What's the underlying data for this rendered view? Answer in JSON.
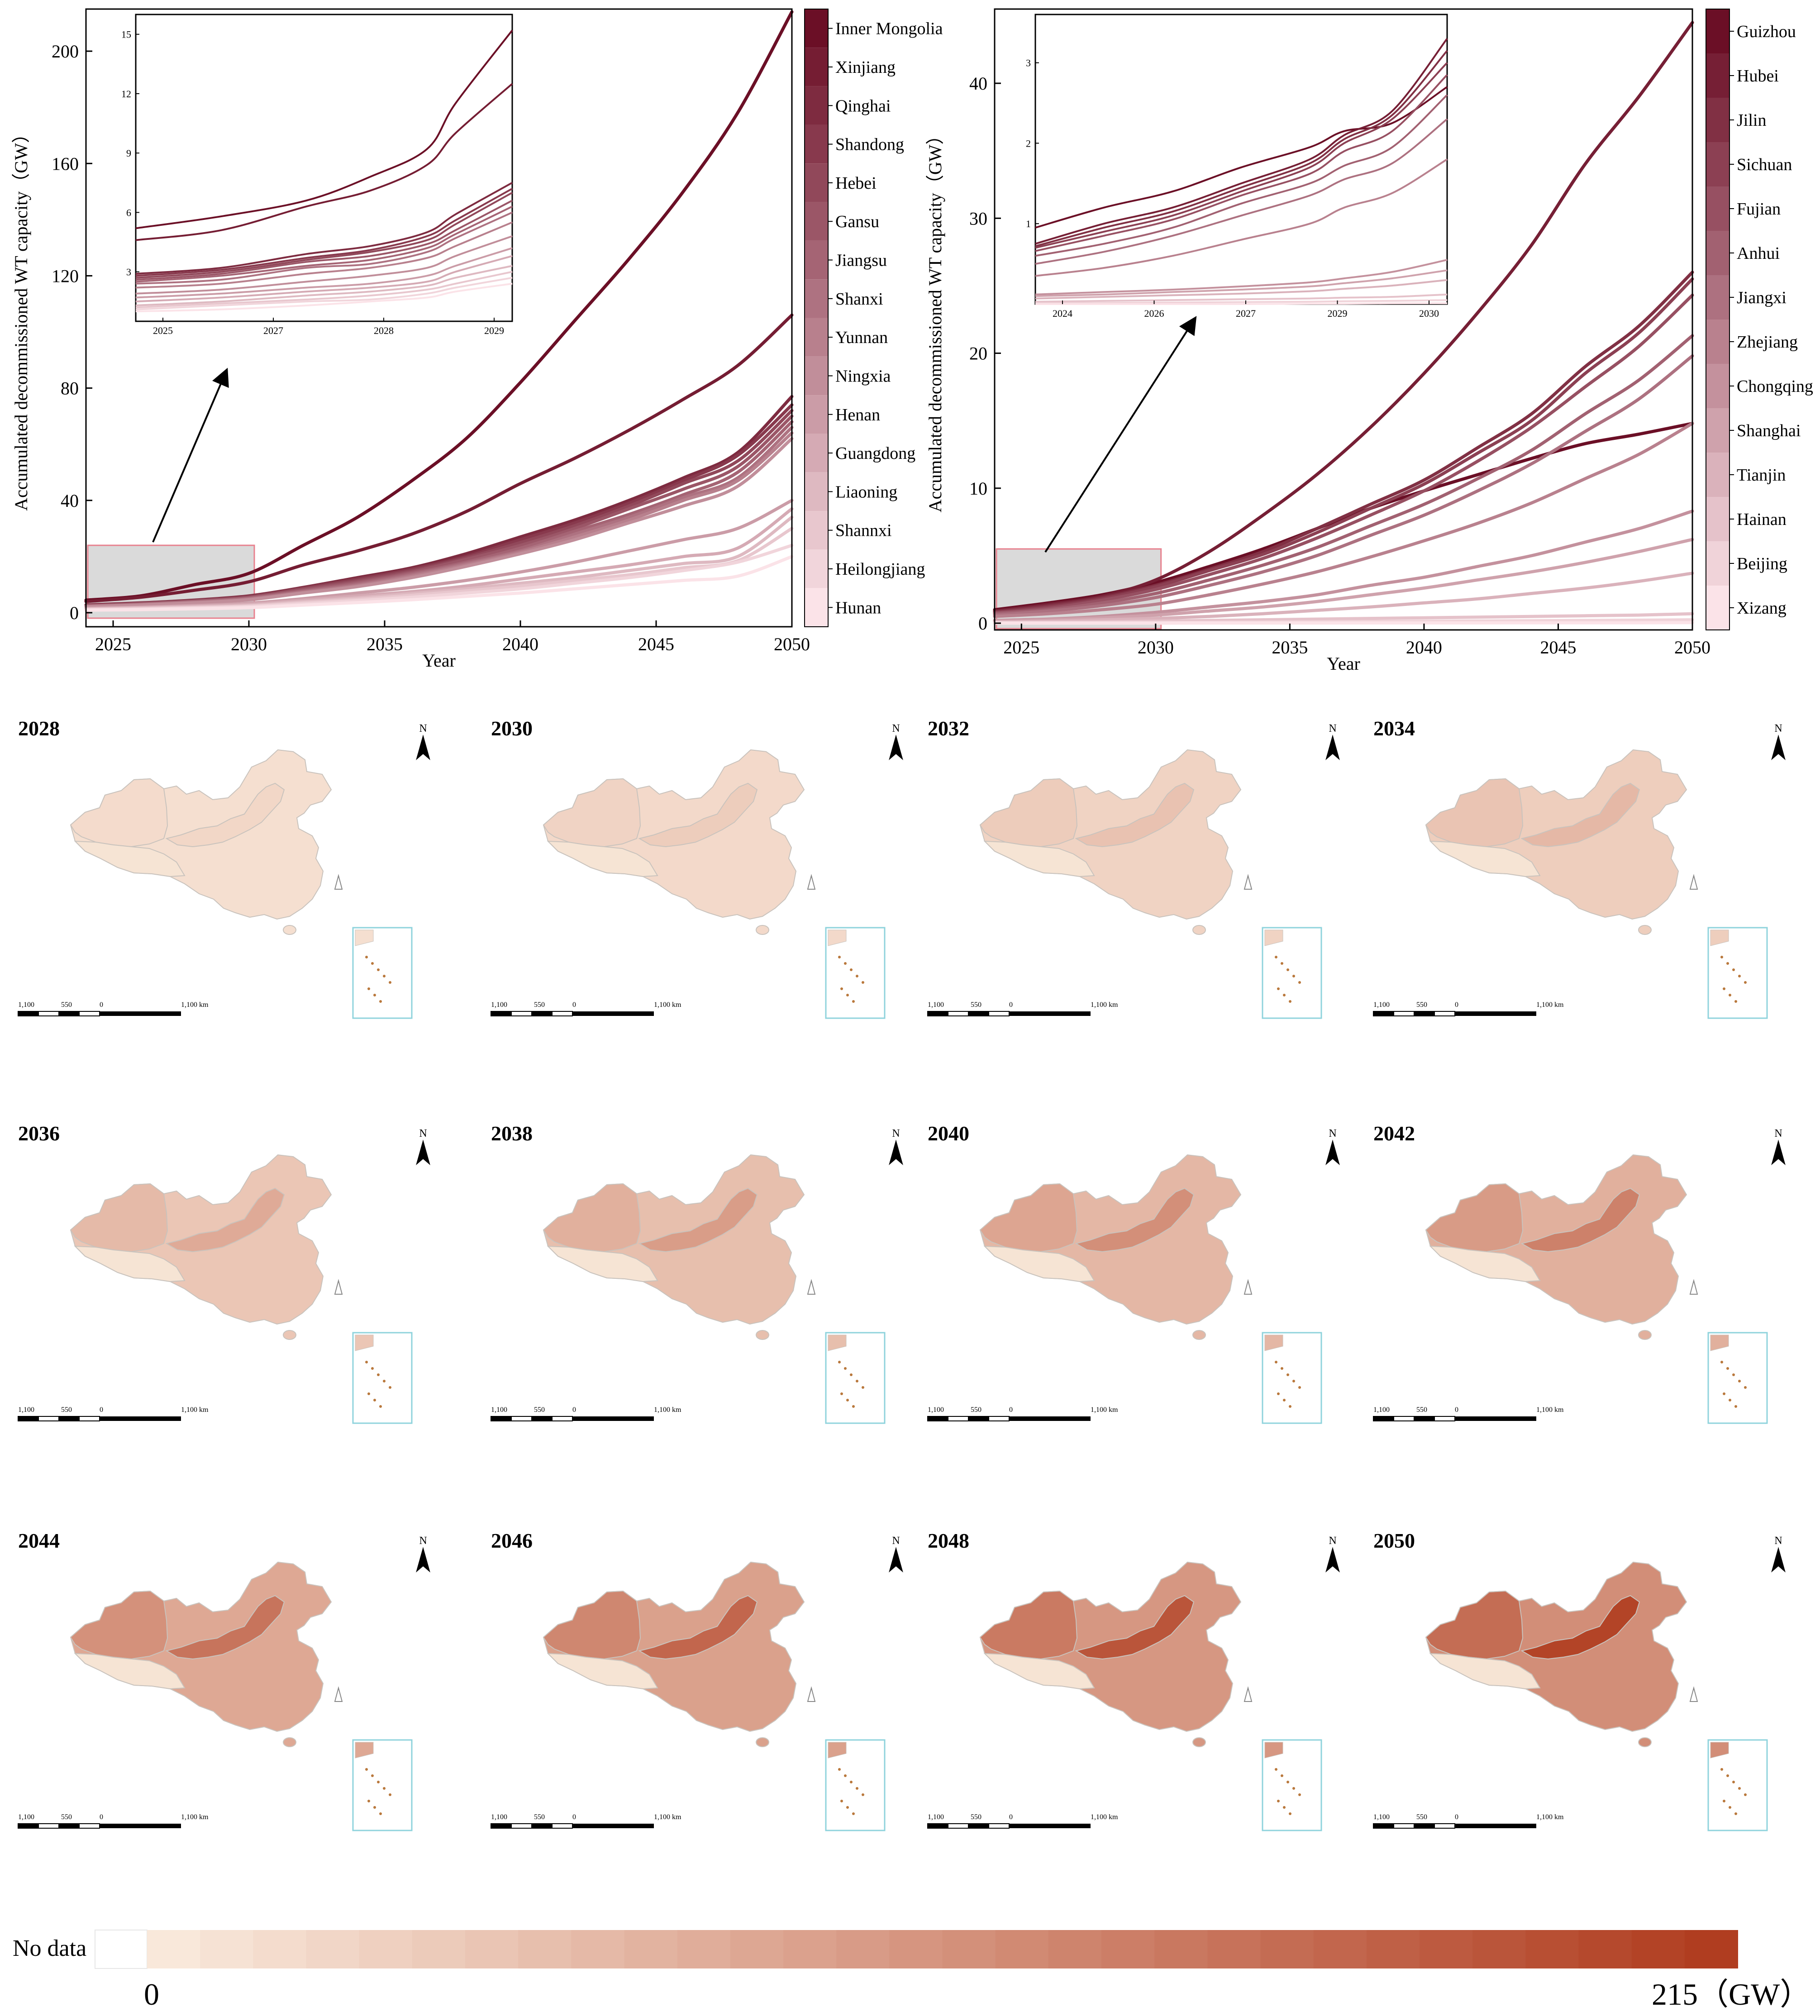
{
  "chart_data": [
    {
      "type": "line",
      "ylabel": "Accumulated decommissioned WT capacity（GW）",
      "xlabel": "Year",
      "xlim": [
        2024,
        2050
      ],
      "ylim": [
        -5,
        215
      ],
      "xticks": [
        2025,
        2030,
        2035,
        2040,
        2045,
        2050
      ],
      "yticks": [
        0,
        40,
        80,
        120,
        160,
        200
      ],
      "x": [
        2024,
        2026,
        2028,
        2030,
        2032,
        2034,
        2036,
        2038,
        2040,
        2042,
        2044,
        2046,
        2048,
        2050
      ],
      "legend_labels": [
        "Inner Mongolia",
        "Xinjiang",
        "Qinghai",
        "Shandong",
        "Hebei",
        "Gansu",
        "Jiangsu",
        "Shanxi",
        "Yunnan",
        "Ningxia",
        "Henan",
        "Guangdong",
        "Liaoning",
        "Shannxi",
        "Heilongjiang",
        "Hunan"
      ],
      "series": [
        {
          "name": "Inner Mongolia",
          "values": [
            4.5,
            6,
            10,
            14,
            24,
            34,
            47,
            62,
            82,
            104,
            126,
            150,
            178,
            214
          ]
        },
        {
          "name": "Xinjiang",
          "values": [
            4,
            5.5,
            8,
            11,
            17,
            22,
            28,
            36,
            46,
            55,
            65,
            76,
            88,
            106
          ]
        },
        {
          "name": "Qinghai",
          "values": [
            2.8,
            3.5,
            4.5,
            6,
            9,
            12.5,
            16,
            21,
            27,
            33,
            40,
            48,
            57,
            77
          ]
        },
        {
          "name": "Shandong",
          "values": [
            2.7,
            3.4,
            4.4,
            5.8,
            8.8,
            12,
            15.5,
            20,
            26,
            32,
            39,
            47,
            56,
            74
          ]
        },
        {
          "name": "Hebei",
          "values": [
            2.6,
            3.3,
            4.2,
            5.6,
            8.5,
            11.5,
            15,
            19.5,
            25,
            31,
            38,
            46,
            54,
            72
          ]
        },
        {
          "name": "Gansu",
          "values": [
            2.5,
            3.2,
            4.1,
            5.4,
            8.2,
            11,
            14.5,
            19,
            24,
            30,
            37,
            44,
            52,
            70
          ]
        },
        {
          "name": "Jiangsu",
          "values": [
            2.4,
            3,
            4,
            5.2,
            7.8,
            10.5,
            14,
            18,
            23,
            29,
            35,
            42,
            50,
            68
          ]
        },
        {
          "name": "Shanxi",
          "values": [
            2.3,
            2.9,
            3.8,
            5,
            7.5,
            10,
            13.5,
            17.5,
            22,
            28,
            34,
            41,
            48,
            66
          ]
        },
        {
          "name": "Yunnan",
          "values": [
            2.2,
            2.8,
            3.6,
            4.8,
            7.2,
            9.6,
            13,
            17,
            21.5,
            27,
            33,
            40,
            47,
            64
          ]
        },
        {
          "name": "Ningxia",
          "values": [
            2.1,
            2.7,
            3.5,
            4.6,
            7,
            9.3,
            12.5,
            16.5,
            21,
            26,
            32,
            38,
            45,
            62
          ]
        },
        {
          "name": "Henan",
          "values": [
            1.6,
            2,
            2.6,
            3.4,
            5,
            7,
            9,
            11.5,
            14.5,
            18,
            22,
            26,
            30,
            40
          ]
        },
        {
          "name": "Guangdong",
          "values": [
            1.5,
            1.9,
            2.4,
            3.1,
            4.5,
            6,
            7.5,
            9.5,
            12,
            14.5,
            17,
            20,
            23,
            37
          ]
        },
        {
          "name": "Liaoning",
          "values": [
            1.3,
            1.7,
            2.1,
            2.7,
            4,
            5.3,
            6.8,
            8.5,
            10.5,
            12.5,
            15,
            17.5,
            20,
            34
          ]
        },
        {
          "name": "Shannxi",
          "values": [
            1.2,
            1.5,
            1.9,
            2.4,
            3.6,
            4.8,
            6.2,
            7.8,
            9.5,
            11.5,
            13.5,
            16,
            18.5,
            30
          ]
        },
        {
          "name": "Heilongjiang",
          "values": [
            1,
            1.3,
            1.7,
            2.2,
            3.2,
            4.3,
            5.5,
            7,
            8.5,
            10.5,
            12.5,
            15,
            18,
            24
          ]
        },
        {
          "name": "Hunan",
          "values": [
            0.9,
            1.1,
            1.4,
            1.8,
            2.7,
            3.6,
            4.6,
            5.8,
            7,
            8.5,
            10,
            11.5,
            13,
            20
          ]
        }
      ],
      "inset": {
        "xticks": [
          "2025",
          "2027",
          "2028",
          "2029"
        ],
        "yticks": [
          3,
          6,
          9,
          12,
          15
        ],
        "ylim": [
          0.5,
          16
        ],
        "x": [
          2024.3,
          2025.5,
          2026.7,
          2027.6,
          2028.4,
          2028.8,
          2029.6
        ],
        "values": [
          [
            5.2,
            5.8,
            6.6,
            7.8,
            9.2,
            11.5,
            15.2
          ],
          [
            4.6,
            5.1,
            6.3,
            7.1,
            8.4,
            10,
            12.5
          ],
          [
            2.9,
            3.2,
            3.9,
            4.3,
            5,
            5.9,
            7.5
          ],
          [
            2.8,
            3.1,
            3.7,
            4.1,
            4.8,
            5.6,
            7.2
          ],
          [
            2.7,
            3,
            3.6,
            4,
            4.6,
            5.4,
            7
          ],
          [
            2.6,
            2.9,
            3.5,
            3.8,
            4.4,
            5.1,
            6.6
          ],
          [
            2.5,
            2.8,
            3.3,
            3.6,
            4.2,
            4.9,
            6.3
          ],
          [
            2.4,
            2.6,
            3.2,
            3.4,
            4,
            4.7,
            6
          ],
          [
            2.2,
            2.4,
            2.9,
            3.2,
            3.7,
            4.3,
            5.5
          ],
          [
            1.9,
            2.1,
            2.5,
            2.8,
            3.2,
            3.8,
            4.8
          ],
          [
            1.7,
            1.9,
            2.2,
            2.4,
            2.8,
            3.3,
            4.2
          ],
          [
            1.5,
            1.7,
            2,
            2.2,
            2.5,
            3,
            3.8
          ],
          [
            1.3,
            1.5,
            1.8,
            2,
            2.3,
            2.7,
            3.3
          ],
          [
            1.2,
            1.4,
            1.6,
            1.8,
            2.1,
            2.4,
            3
          ],
          [
            1.1,
            1.3,
            1.5,
            1.6,
            1.9,
            2.2,
            2.7
          ],
          [
            1,
            1.1,
            1.3,
            1.5,
            1.7,
            2,
            2.4
          ]
        ]
      }
    },
    {
      "type": "line",
      "ylabel": "Accumulated decommissioned WT capacity（GW）",
      "xlabel": "Year",
      "xlim": [
        2024,
        2050
      ],
      "ylim": [
        -0.5,
        45.5
      ],
      "xticks": [
        2025,
        2030,
        2035,
        2040,
        2045,
        2050
      ],
      "yticks": [
        0,
        10,
        20,
        30,
        40
      ],
      "x": [
        2024,
        2026,
        2028,
        2030,
        2032,
        2034,
        2036,
        2038,
        2040,
        2042,
        2044,
        2046,
        2048,
        2050
      ],
      "legend_labels": [
        "Guizhou",
        "Hubei",
        "Jilin",
        "Sichuan",
        "Fujian",
        "Anhui",
        "Jiangxi",
        "Zhejiang",
        "Chongqing",
        "Shanghai",
        "Tianjin",
        "Hainan",
        "Beijing",
        "Xizang"
      ],
      "series": [
        {
          "name": "Guizhou",
          "values": [
            1,
            1.5,
            2.1,
            3,
            4.2,
            5.5,
            7,
            8.5,
            9.8,
            11,
            12.2,
            13.3,
            14,
            14.8
          ]
        },
        {
          "name": "Hubei",
          "values": [
            0.9,
            1.4,
            2,
            3.2,
            5.3,
            8,
            11,
            14.5,
            18.5,
            23,
            28,
            34,
            39,
            44.5
          ]
        },
        {
          "name": "Jilin",
          "values": [
            0.85,
            1.3,
            1.9,
            2.8,
            4,
            5.3,
            7,
            8.8,
            10.6,
            13,
            15.5,
            19,
            22,
            26
          ]
        },
        {
          "name": "Sichuan",
          "values": [
            0.8,
            1.2,
            1.8,
            2.7,
            3.9,
            5.1,
            6.7,
            8.5,
            10.3,
            12.6,
            15,
            18.5,
            21.5,
            25.5
          ]
        },
        {
          "name": "Fujian",
          "values": [
            0.75,
            1.1,
            1.7,
            2.5,
            3.6,
            4.8,
            6.3,
            8,
            9.8,
            12,
            14.5,
            17.5,
            20.5,
            24.3
          ]
        },
        {
          "name": "Anhui",
          "values": [
            0.7,
            1,
            1.5,
            2.2,
            3.2,
            4.3,
            5.6,
            7.2,
            8.8,
            10.7,
            12.8,
            15.5,
            18,
            21.3
          ]
        },
        {
          "name": "Jiangxi",
          "values": [
            0.6,
            0.9,
            1.3,
            1.9,
            2.8,
            3.8,
            5,
            6.5,
            8,
            9.8,
            11.8,
            14.2,
            16.6,
            19.8
          ]
        },
        {
          "name": "Zhejiang",
          "values": [
            0.5,
            0.7,
            1,
            1.4,
            2.1,
            2.9,
            3.8,
            4.9,
            6.1,
            7.4,
            8.9,
            10.7,
            12.5,
            14.8
          ]
        },
        {
          "name": "Chongqing",
          "values": [
            0.2,
            0.3,
            0.5,
            0.8,
            1.2,
            1.6,
            2.1,
            2.8,
            3.4,
            4.2,
            5,
            6,
            7,
            8.3
          ]
        },
        {
          "name": "Shanghai",
          "values": [
            0.15,
            0.25,
            0.4,
            0.6,
            0.9,
            1.2,
            1.6,
            2.1,
            2.6,
            3.2,
            3.8,
            4.5,
            5.3,
            6.2
          ]
        },
        {
          "name": "Tianjin",
          "values": [
            0.1,
            0.15,
            0.25,
            0.35,
            0.5,
            0.7,
            0.95,
            1.2,
            1.5,
            1.8,
            2.2,
            2.6,
            3.1,
            3.7
          ]
        },
        {
          "name": "Hainan",
          "values": [
            0.05,
            0.08,
            0.1,
            0.15,
            0.2,
            0.25,
            0.3,
            0.35,
            0.4,
            0.45,
            0.5,
            0.55,
            0.6,
            0.7
          ]
        },
        {
          "name": "Beijing",
          "values": [
            0.02,
            0.03,
            0.04,
            0.05,
            0.06,
            0.08,
            0.1,
            0.12,
            0.14,
            0.16,
            0.18,
            0.2,
            0.22,
            0.25
          ]
        },
        {
          "name": "Xizang",
          "values": [
            0,
            0,
            0,
            0,
            0.01,
            0.01,
            0.01,
            0.02,
            0.02,
            0.02,
            0.03,
            0.03,
            0.03,
            0.04
          ]
        }
      ],
      "inset": {
        "xticks": [
          "2024",
          "2026",
          "2027",
          "2029",
          "2030"
        ],
        "yticks": [
          1,
          2,
          3
        ],
        "ylim": [
          0,
          3.6
        ],
        "x": [
          2024,
          2025,
          2026,
          2027,
          2028,
          2028.5,
          2029.2,
          2030
        ],
        "values": [
          [
            0.95,
            1.2,
            1.4,
            1.7,
            1.95,
            2.15,
            2.25,
            2.7
          ],
          [
            0.75,
            1,
            1.2,
            1.5,
            1.8,
            2.1,
            2.4,
            3.3
          ],
          [
            0.72,
            0.95,
            1.15,
            1.45,
            1.75,
            2.05,
            2.35,
            3.15
          ],
          [
            0.7,
            0.9,
            1.1,
            1.4,
            1.7,
            2,
            2.3,
            3
          ],
          [
            0.66,
            0.85,
            1.05,
            1.35,
            1.62,
            1.9,
            2.15,
            2.85
          ],
          [
            0.6,
            0.75,
            0.95,
            1.25,
            1.5,
            1.72,
            1.95,
            2.6
          ],
          [
            0.5,
            0.65,
            0.85,
            1.1,
            1.35,
            1.55,
            1.75,
            2.3
          ],
          [
            0.35,
            0.45,
            0.6,
            0.8,
            1,
            1.2,
            1.38,
            1.8
          ],
          [
            0.12,
            0.15,
            0.18,
            0.22,
            0.27,
            0.32,
            0.4,
            0.55
          ],
          [
            0.1,
            0.12,
            0.15,
            0.18,
            0.22,
            0.26,
            0.32,
            0.42
          ],
          [
            0.07,
            0.09,
            0.11,
            0.13,
            0.16,
            0.19,
            0.23,
            0.3
          ],
          [
            0.03,
            0.04,
            0.05,
            0.06,
            0.07,
            0.08,
            0.09,
            0.12
          ],
          [
            0.01,
            0.015,
            0.02,
            0.025,
            0.03,
            0.035,
            0.04,
            0.05
          ],
          [
            0,
            0,
            0,
            0,
            0.005,
            0.005,
            0.01,
            0.01
          ]
        ]
      }
    }
  ],
  "maps": {
    "years": [
      "2028",
      "2030",
      "2032",
      "2034",
      "2036",
      "2038",
      "2040",
      "2042",
      "2044",
      "2046",
      "2048",
      "2050"
    ],
    "intensity": [
      0.1,
      0.16,
      0.22,
      0.28,
      0.36,
      0.44,
      0.52,
      0.6,
      0.68,
      0.76,
      0.86,
      0.96
    ],
    "north_label": "N",
    "scale_labels": [
      "1,100",
      "550",
      "0",
      "1,100 km"
    ]
  },
  "colorbar": {
    "no_data_label": "No data",
    "min_label": "0",
    "max_label": "215（GW）",
    "min_value": 0,
    "max_value": 215,
    "low_color": "#f9e8da",
    "high_color": "#b03d20",
    "steps": 30
  }
}
